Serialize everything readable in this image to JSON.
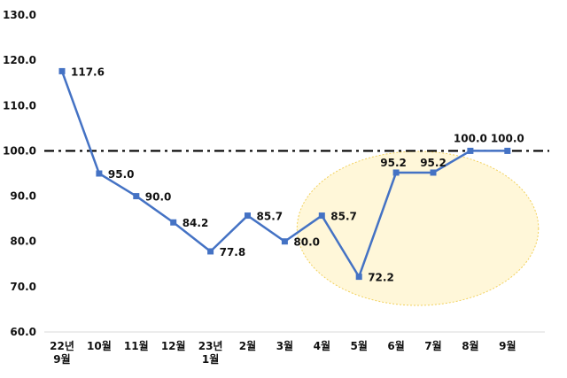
{
  "chart_data": {
    "type": "line",
    "title": "",
    "xlabel": "",
    "ylabel": "",
    "ylim": [
      60.0,
      130.0
    ],
    "yticks": [
      "130.0",
      "120.0",
      "110.0",
      "100.0",
      "90.0",
      "80.0",
      "70.0",
      "60.0"
    ],
    "categories": [
      [
        "22년",
        "9월"
      ],
      [
        "10월"
      ],
      [
        "11월"
      ],
      [
        "12월"
      ],
      [
        "23년",
        "1월"
      ],
      [
        "2월"
      ],
      [
        "3월"
      ],
      [
        "4월"
      ],
      [
        "5월"
      ],
      [
        "6월"
      ],
      [
        "7월"
      ],
      [
        "8월"
      ],
      [
        "9월"
      ]
    ],
    "series": [
      {
        "values": [
          117.6,
          95.0,
          90.0,
          84.2,
          77.8,
          85.7,
          80.0,
          85.7,
          72.2,
          95.2,
          95.2,
          100.0,
          100.0
        ],
        "labels": [
          "117.6",
          "95.0",
          "90.0",
          "84.2",
          "77.8",
          "85.7",
          "80.0",
          "85.7",
          "72.2",
          "95.2",
          "95.2",
          "100.0",
          "100.0"
        ]
      }
    ],
    "reference_line": {
      "value": 100.0,
      "style": "dash-dot"
    },
    "highlight": {
      "type": "ellipse",
      "from_index": 7,
      "to_index": 12
    },
    "grid": false,
    "legend": "none",
    "colors": {
      "line": "#4472C4",
      "marker": "#4472C4",
      "reference": "#000000",
      "highlight_fill": "#FFF4CC",
      "highlight_stroke": "#F2D15C"
    }
  }
}
